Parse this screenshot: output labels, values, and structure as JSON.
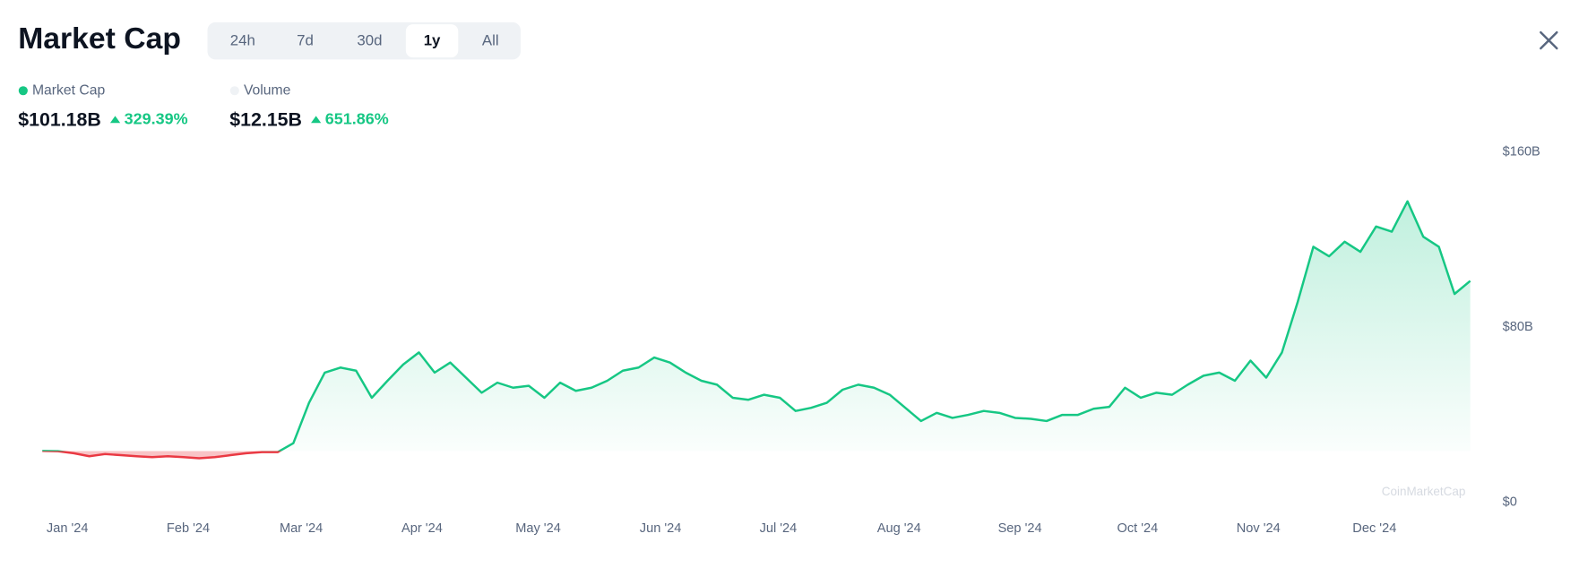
{
  "header": {
    "title": "Market Cap",
    "tabs": [
      "24h",
      "7d",
      "30d",
      "1y",
      "All"
    ],
    "active_tab": 3
  },
  "stats": [
    {
      "name": "Market Cap",
      "color": "#16c784",
      "value": "$101.18B",
      "change": "329.39%"
    },
    {
      "name": "Volume",
      "color": "#eff2f5",
      "value": "$12.15B",
      "change": "651.86%"
    }
  ],
  "watermark": "CoinMarketCap",
  "chart_data": {
    "type": "area",
    "series": [
      {
        "color": "#16c784",
        "down_color": "#ea3943",
        "values": [
          23.56,
          23.4,
          22.5,
          21.1,
          22.1,
          21.6,
          21.1,
          20.7,
          21.1,
          20.7,
          20.2,
          20.7,
          21.6,
          22.5,
          23.0,
          23.0,
          27.1,
          45.5,
          59.3,
          61.6,
          60.2,
          47.8,
          55.6,
          63.0,
          68.5,
          59.3,
          63.9,
          57.0,
          50.1,
          54.7,
          52.4,
          53.3,
          47.8,
          54.7,
          51.0,
          52.4,
          55.6,
          60.2,
          61.6,
          66.2,
          63.9,
          59.3,
          55.6,
          53.8,
          47.8,
          46.9,
          49.2,
          47.8,
          41.8,
          43.2,
          45.5,
          51.5,
          53.8,
          52.4,
          49.2,
          43.2,
          37.2,
          40.9,
          38.6,
          40.0,
          41.8,
          40.9,
          38.6,
          38.2,
          37.2,
          40.0,
          40.0,
          42.8,
          43.7,
          52.4,
          47.8,
          50.1,
          49.2,
          53.8,
          57.9,
          59.3,
          55.6,
          64.8,
          57.0,
          68.5,
          91.5,
          116.8,
          112.4,
          119.1,
          114.5,
          126.0,
          123.7,
          137.5,
          121.4,
          116.8,
          95.2,
          101.18
        ]
      }
    ],
    "xlim": [
      0,
      91
    ],
    "xticks": [
      {
        "value": 1.6,
        "label": "Jan '24"
      },
      {
        "value": 9.3,
        "label": "Feb '24"
      },
      {
        "value": 16.5,
        "label": "Mar '24"
      },
      {
        "value": 24.2,
        "label": "Apr '24"
      },
      {
        "value": 31.6,
        "label": "May '24"
      },
      {
        "value": 39.4,
        "label": "Jun '24"
      },
      {
        "value": 46.9,
        "label": "Jul '24"
      },
      {
        "value": 54.6,
        "label": "Aug '24"
      },
      {
        "value": 62.3,
        "label": "Sep '24"
      },
      {
        "value": 69.8,
        "label": "Oct '24"
      },
      {
        "value": 77.5,
        "label": "Nov '24"
      },
      {
        "value": 84.9,
        "label": "Dec '24"
      }
    ],
    "ylim": [
      0,
      160
    ],
    "yticks": [
      {
        "value": 0,
        "label": "$0"
      },
      {
        "value": 80,
        "label": "$80B"
      },
      {
        "value": 160,
        "label": "$160B"
      }
    ]
  }
}
